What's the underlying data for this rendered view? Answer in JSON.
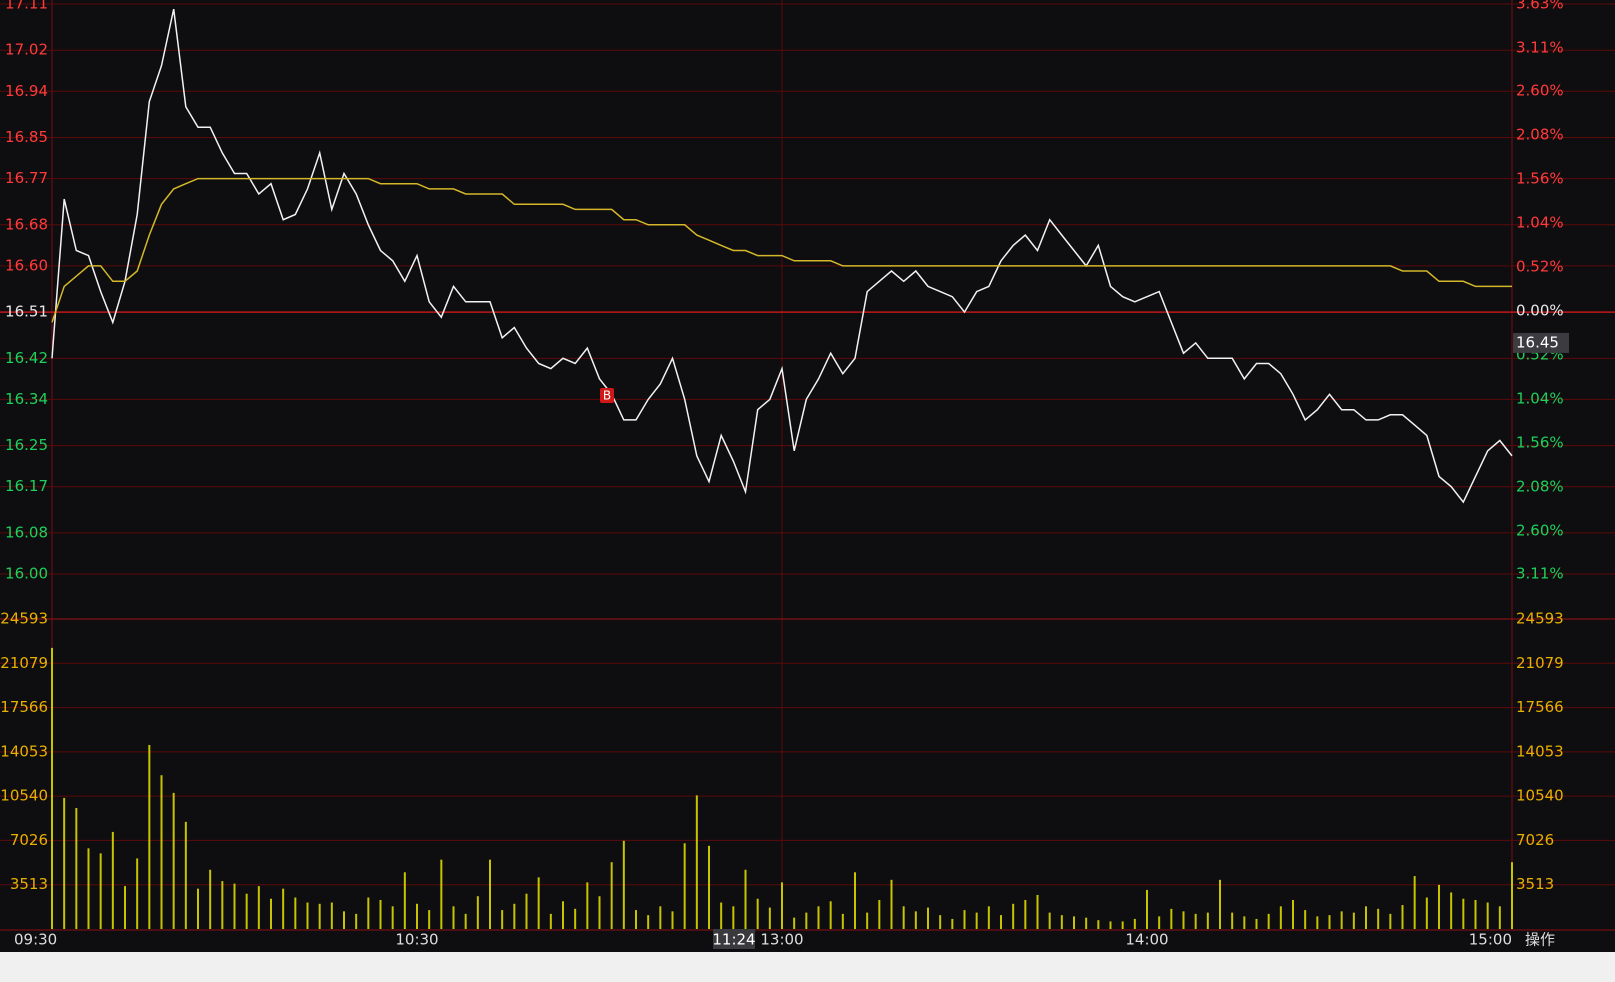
{
  "chart_data": [
    {
      "type": "line",
      "categories": [
        "09:30",
        null,
        null,
        null,
        null,
        null,
        null,
        null,
        null,
        null,
        null,
        null,
        null,
        null,
        null,
        null,
        null,
        null,
        null,
        null,
        null,
        null,
        null,
        null,
        null,
        null,
        null,
        null,
        null,
        null,
        "10:30",
        null,
        null,
        null,
        null,
        null,
        null,
        null,
        null,
        null,
        null,
        null,
        null,
        null,
        null,
        null,
        null,
        null,
        null,
        null,
        null,
        null,
        null,
        null,
        null,
        null,
        null,
        null,
        null,
        null,
        "13:00",
        null,
        null,
        null,
        null,
        null,
        null,
        null,
        null,
        null,
        null,
        null,
        null,
        null,
        null,
        null,
        null,
        null,
        null,
        null,
        null,
        null,
        null,
        null,
        null,
        null,
        null,
        null,
        null,
        null,
        "14:00",
        null,
        null,
        null,
        null,
        null,
        null,
        null,
        null,
        null,
        null,
        null,
        null,
        null,
        null,
        null,
        null,
        null,
        null,
        null,
        null,
        null,
        null,
        null,
        null,
        null,
        null,
        null,
        null,
        null,
        "15:00"
      ],
      "series": [
        {
          "color": "#f2f2f2",
          "values": [
            16.42,
            16.73,
            16.63,
            16.62,
            16.55,
            16.49,
            16.57,
            16.7,
            16.92,
            16.99,
            17.1,
            16.91,
            16.87,
            16.87,
            16.82,
            16.78,
            16.78,
            16.74,
            16.76,
            16.69,
            16.7,
            16.75,
            16.82,
            16.71,
            16.78,
            16.74,
            16.68,
            16.63,
            16.61,
            16.57,
            16.62,
            16.53,
            16.5,
            16.56,
            16.53,
            16.53,
            16.53,
            16.46,
            16.48,
            16.44,
            16.41,
            16.4,
            16.42,
            16.41,
            16.44,
            16.38,
            16.35,
            16.3,
            16.3,
            16.34,
            16.37,
            16.42,
            16.34,
            16.23,
            16.18,
            16.27,
            16.22,
            16.16,
            16.32,
            16.34,
            16.4,
            16.24,
            16.34,
            16.38,
            16.43,
            16.39,
            16.42,
            16.55,
            16.57,
            16.59,
            16.57,
            16.59,
            16.56,
            16.55,
            16.54,
            16.51,
            16.55,
            16.56,
            16.61,
            16.64,
            16.66,
            16.63,
            16.69,
            16.66,
            16.63,
            16.6,
            16.64,
            16.56,
            16.54,
            16.53,
            16.54,
            16.55,
            16.49,
            16.43,
            16.45,
            16.42,
            16.42,
            16.42,
            16.38,
            16.41,
            16.41,
            16.39,
            16.35,
            16.3,
            16.32,
            16.35,
            16.32,
            16.32,
            16.3,
            16.3,
            16.31,
            16.31,
            16.29,
            16.27,
            16.19,
            16.17,
            16.14,
            16.19,
            16.24,
            16.26,
            16.23
          ]
        },
        {
          "color": "#d4b82a",
          "values": [
            16.49,
            16.56,
            16.58,
            16.6,
            16.6,
            16.57,
            16.57,
            16.59,
            16.66,
            16.72,
            16.75,
            16.76,
            16.77,
            16.77,
            16.77,
            16.77,
            16.77,
            16.77,
            16.77,
            16.77,
            16.77,
            16.77,
            16.77,
            16.77,
            16.77,
            16.77,
            16.77,
            16.76,
            16.76,
            16.76,
            16.76,
            16.75,
            16.75,
            16.75,
            16.74,
            16.74,
            16.74,
            16.74,
            16.72,
            16.72,
            16.72,
            16.72,
            16.72,
            16.71,
            16.71,
            16.71,
            16.71,
            16.69,
            16.69,
            16.68,
            16.68,
            16.68,
            16.68,
            16.66,
            16.65,
            16.64,
            16.63,
            16.63,
            16.62,
            16.62,
            16.62,
            16.61,
            16.61,
            16.61,
            16.61,
            16.6,
            16.6,
            16.6,
            16.6,
            16.6,
            16.6,
            16.6,
            16.6,
            16.6,
            16.6,
            16.6,
            16.6,
            16.6,
            16.6,
            16.6,
            16.6,
            16.6,
            16.6,
            16.6,
            16.6,
            16.6,
            16.6,
            16.6,
            16.6,
            16.6,
            16.6,
            16.6,
            16.6,
            16.6,
            16.6,
            16.6,
            16.6,
            16.6,
            16.6,
            16.6,
            16.6,
            16.6,
            16.6,
            16.6,
            16.6,
            16.6,
            16.6,
            16.6,
            16.6,
            16.6,
            16.6,
            16.59,
            16.59,
            16.59,
            16.57,
            16.57,
            16.57,
            16.56,
            16.56,
            16.56,
            16.56
          ]
        }
      ],
      "ylim": [
        16,
        17.11
      ],
      "yticks": [
        17.11,
        17.02,
        16.94,
        16.85,
        16.77,
        16.68,
        {
          "value": 16.6,
          "label": "16.60"
        },
        16.51,
        16.42,
        16.34,
        16.25,
        16.17,
        16.08,
        {
          "value": 16,
          "label": "16.00"
        }
      ],
      "y2lim": [
        -3.11,
        3.63
      ],
      "y2ticks": [
        {
          "value": 3.63,
          "label": "3.63%"
        },
        {
          "value": 3.11,
          "label": "3.11%"
        },
        {
          "value": 2.6,
          "label": "2.60%"
        },
        {
          "value": 2.08,
          "label": "2.08%"
        },
        {
          "value": 1.56,
          "label": "1.56%"
        },
        {
          "value": 1.04,
          "label": "1.04%"
        },
        {
          "value": 0.52,
          "label": "0.52%"
        },
        {
          "value": 0,
          "label": "0.00%"
        },
        {
          "value": -0.52,
          "label": "0.52%"
        },
        {
          "value": -1.04,
          "label": "1.04%"
        },
        {
          "value": -1.56,
          "label": "1.56%"
        },
        {
          "value": -2.08,
          "label": "2.08%"
        },
        {
          "value": -2.6,
          "label": "2.60%"
        },
        {
          "value": -3.11,
          "label": "3.11%"
        }
      ],
      "last_price": 16.45,
      "grid": true
    },
    {
      "type": "bar",
      "color": "#c8c400",
      "values": [
        22300,
        10400,
        9600,
        6400,
        6000,
        7700,
        3400,
        5600,
        14600,
        12200,
        10800,
        8500,
        3200,
        4700,
        3800,
        3600,
        2800,
        3400,
        2400,
        3200,
        2500,
        2100,
        2000,
        2100,
        1400,
        1200,
        2500,
        2300,
        1800,
        4500,
        2000,
        1500,
        5500,
        1800,
        1200,
        2600,
        5500,
        1500,
        2000,
        2800,
        4100,
        1200,
        2200,
        1600,
        3700,
        2600,
        5300,
        7000,
        1500,
        1100,
        1800,
        1400,
        6800,
        10600,
        6600,
        2100,
        1800,
        4700,
        2400,
        1700,
        3700,
        900,
        1300,
        1800,
        2200,
        1200,
        4500,
        1300,
        2300,
        3900,
        1800,
        1400,
        1700,
        1100,
        800,
        1500,
        1300,
        1800,
        1100,
        2000,
        2300,
        2700,
        1300,
        1100,
        1000,
        900,
        700,
        600,
        600,
        800,
        3100,
        1000,
        1600,
        1400,
        1200,
        1300,
        3900,
        1300,
        1000,
        800,
        1200,
        1800,
        2300,
        1500,
        1000,
        1100,
        1400,
        1300,
        1800,
        1600,
        1200,
        1900,
        4200,
        2500,
        3500,
        2900,
        2400,
        2300,
        2100,
        1800,
        5300
      ],
      "ylim": [
        0,
        24593
      ],
      "yticks": [
        24593,
        21079,
        17566,
        14053,
        10540,
        7026,
        3513
      ],
      "grid": true
    }
  ],
  "cursor_time": "11:24",
  "trade_marker": "B",
  "menu_button": "操作"
}
